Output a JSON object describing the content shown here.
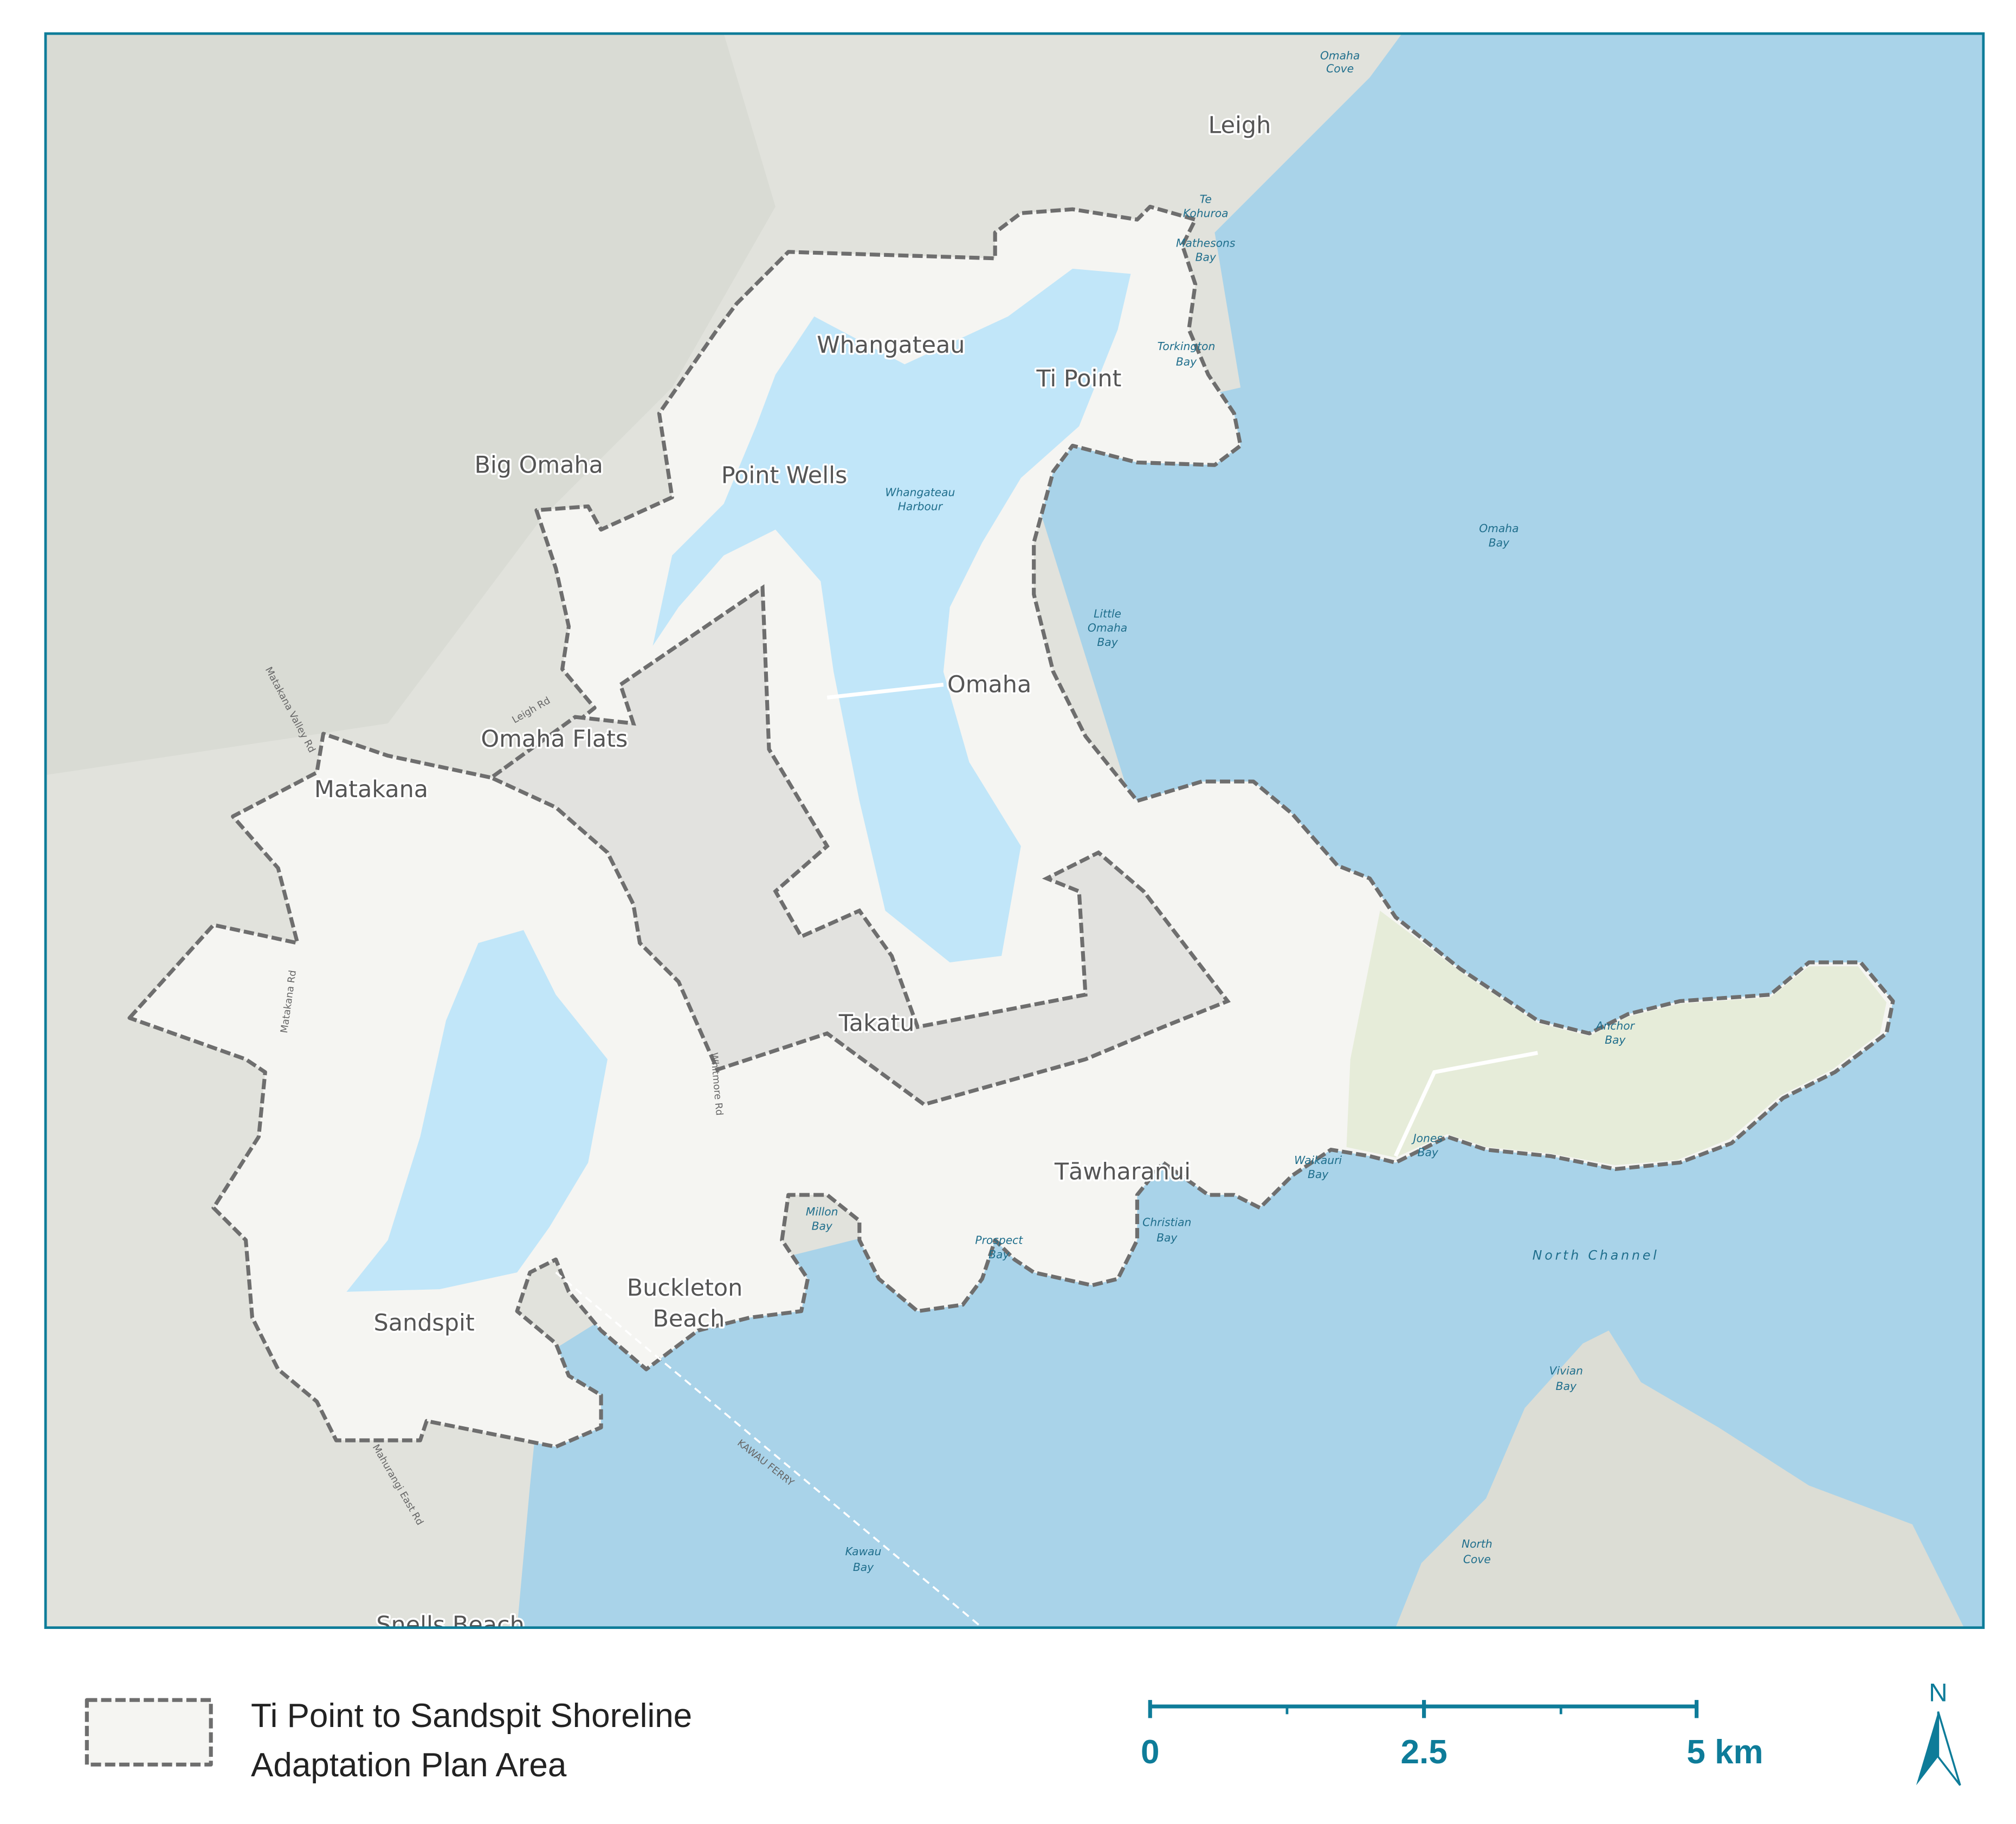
{
  "map": {
    "colors": {
      "sea": "#a9d3e9",
      "harbour": "#c1e6f9",
      "land": "#e1e2dc",
      "plan_area": "#f5f5f2",
      "excluded": "#e2e2df",
      "reserve": "#e6ecd9",
      "boundary": "#6e6e6e",
      "accent": "#0e7c99"
    },
    "place_labels": [
      "Leigh",
      "Whangateau",
      "Ti Point",
      "Big Omaha",
      "Point Wells",
      "Omaha",
      "Omaha Flats",
      "Matakana",
      "Takatu",
      "Tāwharanui",
      "Buckleton",
      "Beach",
      "Sandspit",
      "Snells Beach"
    ],
    "water_labels": [
      "Omaha",
      "Cove",
      "Te",
      "Kohuroa",
      "Mathesons",
      "Bay",
      "Torkington",
      "Bay",
      "Whangateau",
      "Harbour",
      "Omaha",
      "Bay",
      "Little",
      "Omaha",
      "Bay",
      "Anchor",
      "Bay",
      "Jones",
      "Bay",
      "Waikauri",
      "Bay",
      "Christian",
      "Bay",
      "Prospect",
      "Bay",
      "Millon",
      "Bay",
      "North Channel",
      "Vivian",
      "Bay",
      "North",
      "Cove",
      "Kawau",
      "Bay"
    ],
    "road_labels": [
      "Matakana Valley Rd",
      "Matakana Rd",
      "Leigh Rd",
      "Whitmore Rd",
      "Mahurangi East Rd",
      "KAWAU FERRY"
    ]
  },
  "legend": {
    "label_line1": "Ti Point to Sandspit Shoreline",
    "label_line2": "Adaptation Plan Area"
  },
  "scale_bar": {
    "labels": [
      "0",
      "2.5",
      "5 km"
    ],
    "unit": "km",
    "max": 5
  },
  "north_arrow": {
    "label": "N"
  }
}
